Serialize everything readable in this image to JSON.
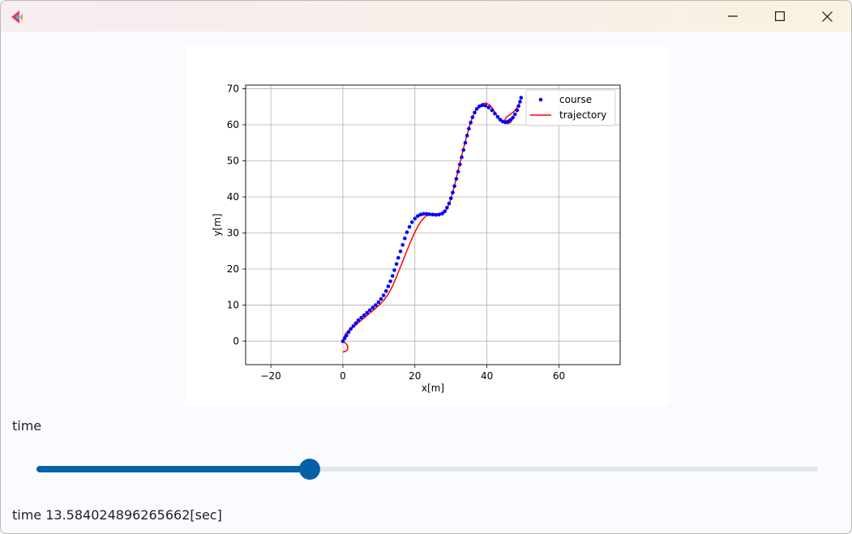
{
  "window": {
    "app_icon": "colorful-arrow-icon",
    "controls": [
      "minimize-icon",
      "maximize-icon",
      "close-icon"
    ]
  },
  "controls": {
    "slider_label": "time",
    "readout": "time 13.584024896265662[sec]",
    "slider_fraction": 0.35,
    "accent_color": "#0560a6",
    "track_color": "#e2e6ee"
  },
  "chart_data": {
    "type": "line",
    "title": "",
    "xlabel": "x[m]",
    "ylabel": "y[m]",
    "xlim": [
      -27,
      77
    ],
    "ylim": [
      -6.5,
      71
    ],
    "xticks": [
      -20,
      0,
      20,
      40,
      60
    ],
    "yticks": [
      0,
      10,
      20,
      30,
      40,
      50,
      60,
      70
    ],
    "grid": true,
    "legend_position": "top-right",
    "series": [
      {
        "name": "course",
        "style": "points",
        "color": "#0000ff",
        "x": [
          0,
          0.5,
          1,
          1.6,
          2.2,
          2.9,
          3.6,
          4.3,
          5.1,
          5.9,
          6.7,
          7.5,
          8.3,
          9.1,
          9.9,
          10.6,
          11.3,
          12,
          12.6,
          13.2,
          13.8,
          14.3,
          14.9,
          15.4,
          16,
          16.6,
          17.2,
          17.8,
          18.5,
          19.2,
          20,
          20.8,
          21.6,
          22.4,
          23.2,
          24,
          24.9,
          25.8,
          26.7,
          27.6,
          28.3,
          28.9,
          29.5,
          30,
          30.5,
          31,
          31.5,
          32,
          32.5,
          33,
          33.5,
          34,
          34.5,
          35,
          35.5,
          36,
          36.6,
          37.2,
          37.9,
          38.7,
          39.6,
          40.5,
          41.4,
          42.2,
          43,
          43.7,
          44.4,
          45.1,
          45.8,
          46.5,
          47.2,
          47.8,
          48.4,
          48.8,
          49.2,
          49.5
        ],
        "y": [
          0,
          0.8,
          1.6,
          2.5,
          3.4,
          4.2,
          5,
          5.8,
          6.5,
          7.2,
          7.9,
          8.6,
          9.3,
          10,
          10.8,
          11.7,
          12.7,
          13.9,
          15.2,
          16.6,
          18.1,
          19.7,
          21.4,
          23.1,
          24.9,
          26.7,
          28.5,
          30.2,
          31.7,
          33,
          34,
          34.7,
          35.1,
          35.3,
          35.3,
          35.2,
          35.1,
          35,
          35.1,
          35.4,
          36,
          37,
          38.2,
          39.6,
          41.2,
          43,
          45,
          47,
          49,
          51,
          53,
          55,
          57,
          58.9,
          60.6,
          62.1,
          63.4,
          64.4,
          65.1,
          65.4,
          65.3,
          64.8,
          64,
          63.1,
          62.2,
          61.4,
          60.9,
          60.7,
          60.9,
          61.3,
          62,
          62.9,
          64,
          65.2,
          66.4,
          67.5
        ]
      },
      {
        "name": "trajectory",
        "style": "line",
        "color": "#ff0000",
        "x": [
          0,
          0.8,
          1.3,
          1.4,
          1,
          0.3,
          0.2,
          0.6,
          1.3,
          2.2,
          3.3,
          4.4,
          5.6,
          6.8,
          8,
          9.2,
          10.4,
          11.5,
          12.5,
          13.4,
          14.2,
          15,
          15.8,
          16.6,
          17.4,
          18.2,
          19,
          19.8,
          20.6,
          21.4,
          22.2,
          23,
          23.8,
          24.6,
          25.4,
          26.2,
          27,
          27.8,
          28.5,
          29.1,
          29.7,
          30.2,
          30.7,
          31.2,
          31.7,
          32.2,
          32.7,
          33.2,
          33.7,
          34.2,
          34.7,
          35.2,
          35.8,
          36.4,
          37.1,
          37.9,
          38.8,
          39.8,
          40.8,
          41.6,
          42.3,
          42.9,
          43.4,
          43.9,
          44.5,
          45.2,
          45.9,
          46.6,
          47.1,
          47.3,
          47.1,
          46.5,
          45.7,
          45.1,
          45,
          45.4,
          46.1,
          46.8,
          47.5,
          48.2,
          48.8,
          49.3
        ],
        "y": [
          -3,
          -2.8,
          -2.3,
          -1.5,
          -0.8,
          -0.2,
          0.8,
          1.8,
          2.7,
          3.4,
          4.2,
          5.2,
          6.2,
          7.2,
          8.2,
          9.2,
          10.3,
          11.5,
          12.9,
          14.5,
          16.2,
          18.1,
          20.1,
          22.1,
          24.1,
          26.1,
          28,
          29.8,
          31.4,
          32.8,
          33.9,
          34.6,
          35,
          35.2,
          35.3,
          35.3,
          35.3,
          35.4,
          36,
          37.2,
          38.6,
          40.2,
          42,
          44,
          46.1,
          48.1,
          50.2,
          52.2,
          54.2,
          56.1,
          58,
          59.8,
          61.5,
          63,
          64.3,
          65.3,
          65.9,
          66,
          65.5,
          64.5,
          63.3,
          62.3,
          61.5,
          61,
          60.8,
          60.7,
          60.8,
          61.2,
          61.8,
          62.2,
          61.5,
          60.6,
          60.3,
          60.7,
          61.4,
          62.1,
          62.6,
          63.1,
          63.7,
          64.5,
          65.5,
          66.6
        ]
      }
    ]
  }
}
